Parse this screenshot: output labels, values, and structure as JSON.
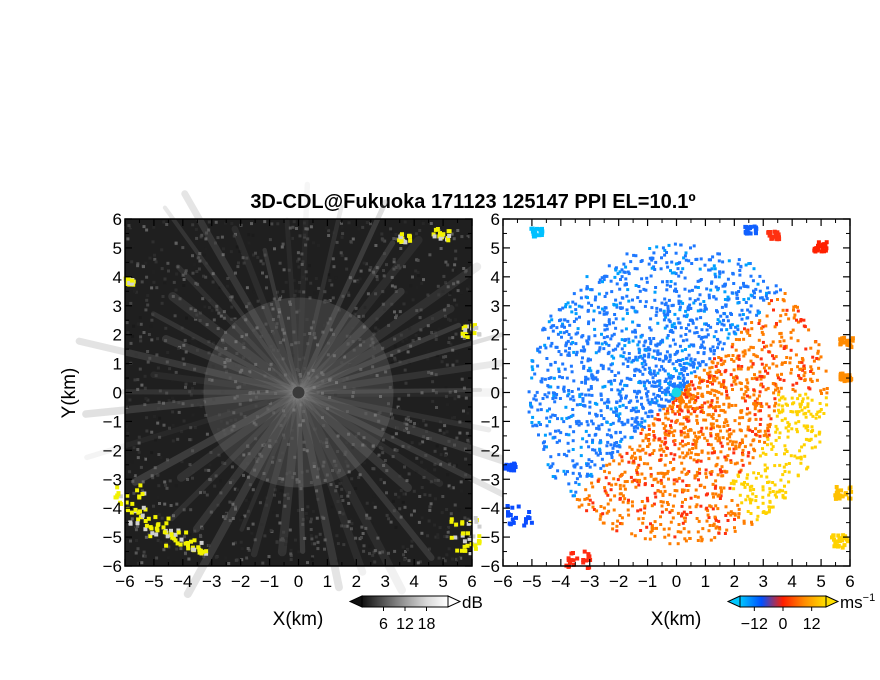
{
  "figure": {
    "title": "3D-CDL@Fukuoka 171123 125147 PPI EL=10.1º"
  },
  "chart_data": [
    {
      "type": "heatmap",
      "panel": "reflectivity",
      "xlabel": "X(km)",
      "ylabel": "Y(km)",
      "xlim": [
        -6,
        6
      ],
      "ylim": [
        -6,
        6
      ],
      "x_ticks": [
        -6,
        -5,
        -4,
        -3,
        -2,
        -1,
        0,
        1,
        2,
        3,
        4,
        5,
        6
      ],
      "y_ticks": [
        -6,
        -5,
        -4,
        -3,
        -2,
        -1,
        0,
        1,
        2,
        3,
        4,
        5,
        6
      ],
      "x_tick_labels": [
        "−6",
        "−5",
        "−4",
        "−3",
        "−2",
        "−1",
        "0",
        "1",
        "2",
        "3",
        "4",
        "5",
        "6"
      ],
      "y_tick_labels": [
        "−6",
        "−5",
        "−4",
        "−3",
        "−2",
        "−1",
        "0",
        "1",
        "2",
        "3",
        "4",
        "5",
        "6"
      ],
      "colorbar": {
        "unit": "dB",
        "tick_values": [
          6,
          12,
          18
        ],
        "tick_labels": [
          "6",
          "12",
          "18"
        ],
        "range": [
          0,
          24
        ],
        "colors": [
          "#101010",
          "#555555",
          "#9a9a9a",
          "#d8d8d8",
          "#ffffff"
        ]
      },
      "features": [
        {
          "name": "background",
          "value_db": 4,
          "color": "#1e1e1e"
        },
        {
          "name": "radial-beam",
          "value_db": 12,
          "color": "#8a8a8a"
        },
        {
          "name": "strong-echo",
          "value_db": 20,
          "color": "#f2f200"
        }
      ]
    },
    {
      "type": "heatmap",
      "panel": "doppler-velocity",
      "xlabel": "X(km)",
      "ylabel": "",
      "xlim": [
        -6,
        6
      ],
      "ylim": [
        -6,
        6
      ],
      "x_ticks": [
        -6,
        -5,
        -4,
        -3,
        -2,
        -1,
        0,
        1,
        2,
        3,
        4,
        5,
        6
      ],
      "y_ticks": [
        -6,
        -5,
        -4,
        -3,
        -2,
        -1,
        0,
        1,
        2,
        3,
        4,
        5,
        6
      ],
      "x_tick_labels": [
        "−6",
        "−5",
        "−4",
        "−3",
        "−2",
        "−1",
        "0",
        "1",
        "2",
        "3",
        "4",
        "5",
        "6"
      ],
      "y_tick_labels": [
        "−6",
        "−5",
        "−4",
        "−3",
        "−2",
        "−1",
        "0",
        "1",
        "2",
        "3",
        "4",
        "5",
        "6"
      ],
      "colorbar": {
        "unit": "ms",
        "unit_exponent": "−1",
        "tick_values": [
          -12,
          0,
          12
        ],
        "tick_labels": [
          "−12",
          "0",
          "12"
        ],
        "range": [
          -18,
          18
        ],
        "colors": [
          "#00c8ff",
          "#0050ff",
          "#ff1e00",
          "#ff8c00",
          "#ffe000"
        ]
      },
      "features": [
        {
          "name": "approaching-sector",
          "velocity": -8,
          "color": "#1e78ff"
        },
        {
          "name": "receding-sector",
          "velocity": 10,
          "color": "#ff7d00"
        },
        {
          "name": "far-receding",
          "velocity": 16,
          "color": "#ffd200"
        }
      ]
    }
  ]
}
